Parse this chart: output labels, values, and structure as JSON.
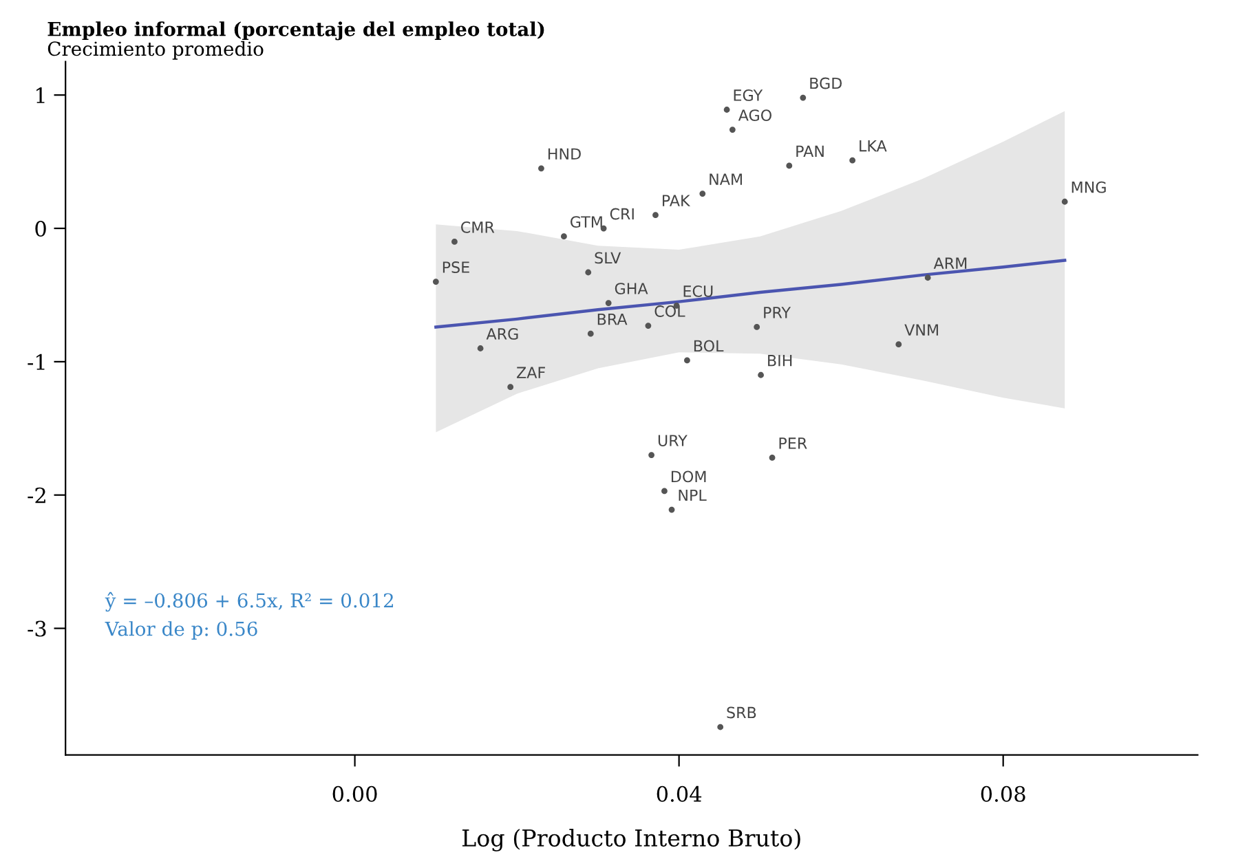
{
  "chart_data": {
    "type": "scatter",
    "title": "Empleo informal (porcentaje del empleo total)",
    "subtitle": "Crecimiento promedio",
    "xlabel": "Log (Producto Interno Bruto)",
    "xlim": [
      -0.0357,
      0.104
    ],
    "ylim": [
      -3.95,
      1.25
    ],
    "xticks": [
      {
        "value": 0,
        "label": "0.00"
      },
      {
        "value": 0.04,
        "label": "0.04"
      },
      {
        "value": 0.08,
        "label": "0.08"
      }
    ],
    "yticks": [
      1,
      0,
      -1,
      -2,
      -3
    ],
    "series": [
      {
        "color": "#555555",
        "x": [
          0.0459,
          0.0553,
          0.0466,
          0.023,
          0.0536,
          0.0614,
          0.0429,
          0.0876,
          0.0307,
          0.0371,
          0.0123,
          0.0258,
          0.0288,
          0.01,
          0.0313,
          0.0397,
          0.0707,
          0.0496,
          0.0291,
          0.0362,
          0.0155,
          0.0671,
          0.041,
          0.0501,
          0.0192,
          0.0366,
          0.0515,
          0.0382,
          0.0391,
          0.0451
        ],
        "values": [
          0.89,
          0.98,
          0.74,
          0.45,
          0.47,
          0.51,
          0.26,
          0.2,
          0.0,
          0.1,
          -0.1,
          -0.06,
          -0.33,
          -0.4,
          -0.56,
          -0.58,
          -0.37,
          -0.74,
          -0.79,
          -0.73,
          -0.9,
          -0.87,
          -0.99,
          -1.1,
          -1.19,
          -1.7,
          -1.72,
          -1.97,
          -2.11,
          -3.74
        ]
      },
      {
        "type": "line",
        "color": "#4b55b0",
        "x": [
          0.01,
          0.02,
          0.03,
          0.04,
          0.05,
          0.06,
          0.07,
          0.08,
          0.0876
        ],
        "values": [
          -0.74,
          -0.68,
          -0.61,
          -0.55,
          -0.48,
          -0.42,
          -0.35,
          -0.29,
          -0.24
        ],
        "lower": [
          -1.53,
          -1.24,
          -1.05,
          -0.93,
          -0.94,
          -1.02,
          -1.14,
          -1.27,
          -1.35
        ],
        "upper": [
          0.03,
          -0.02,
          -0.13,
          -0.16,
          -0.06,
          0.13,
          0.37,
          0.65,
          0.88
        ]
      }
    ],
    "annotations": [
      {
        "text": "EGY",
        "x": 0.0459,
        "y": 0.89
      },
      {
        "text": "BGD",
        "x": 0.0553,
        "y": 0.98
      },
      {
        "text": "AGO",
        "x": 0.0466,
        "y": 0.74
      },
      {
        "text": "HND",
        "x": 0.023,
        "y": 0.45
      },
      {
        "text": "PAN",
        "x": 0.0536,
        "y": 0.47
      },
      {
        "text": "LKA",
        "x": 0.0614,
        "y": 0.51
      },
      {
        "text": "NAM",
        "x": 0.0429,
        "y": 0.26
      },
      {
        "text": "MNG",
        "x": 0.0876,
        "y": 0.2
      },
      {
        "text": "CRI",
        "x": 0.0307,
        "y": 0.0
      },
      {
        "text": "PAK",
        "x": 0.0371,
        "y": 0.1
      },
      {
        "text": "CMR",
        "x": 0.0123,
        "y": -0.1
      },
      {
        "text": "GTM",
        "x": 0.0258,
        "y": -0.06
      },
      {
        "text": "SLV",
        "x": 0.0288,
        "y": -0.33
      },
      {
        "text": "PSE",
        "x": 0.01,
        "y": -0.4
      },
      {
        "text": "GHA",
        "x": 0.0313,
        "y": -0.56
      },
      {
        "text": "ECU",
        "x": 0.0397,
        "y": -0.58
      },
      {
        "text": "ARM",
        "x": 0.0707,
        "y": -0.37
      },
      {
        "text": "PRY",
        "x": 0.0496,
        "y": -0.74
      },
      {
        "text": "BRA",
        "x": 0.0291,
        "y": -0.79
      },
      {
        "text": "COL",
        "x": 0.0362,
        "y": -0.73
      },
      {
        "text": "ARG",
        "x": 0.0155,
        "y": -0.9
      },
      {
        "text": "VNM",
        "x": 0.0671,
        "y": -0.87
      },
      {
        "text": "BOL",
        "x": 0.041,
        "y": -0.99
      },
      {
        "text": "BIH",
        "x": 0.0501,
        "y": -1.1
      },
      {
        "text": "ZAF",
        "x": 0.0192,
        "y": -1.19
      },
      {
        "text": "URY",
        "x": 0.0366,
        "y": -1.7
      },
      {
        "text": "PER",
        "x": 0.0515,
        "y": -1.72
      },
      {
        "text": "DOM",
        "x": 0.0382,
        "y": -1.97
      },
      {
        "text": "NPL",
        "x": 0.0391,
        "y": -2.11
      },
      {
        "text": "SRB",
        "x": 0.0451,
        "y": -3.74
      },
      "ŷ = –0.806 + 6.5x, R² = 0.012",
      "Valor de p: 0.56"
    ]
  }
}
